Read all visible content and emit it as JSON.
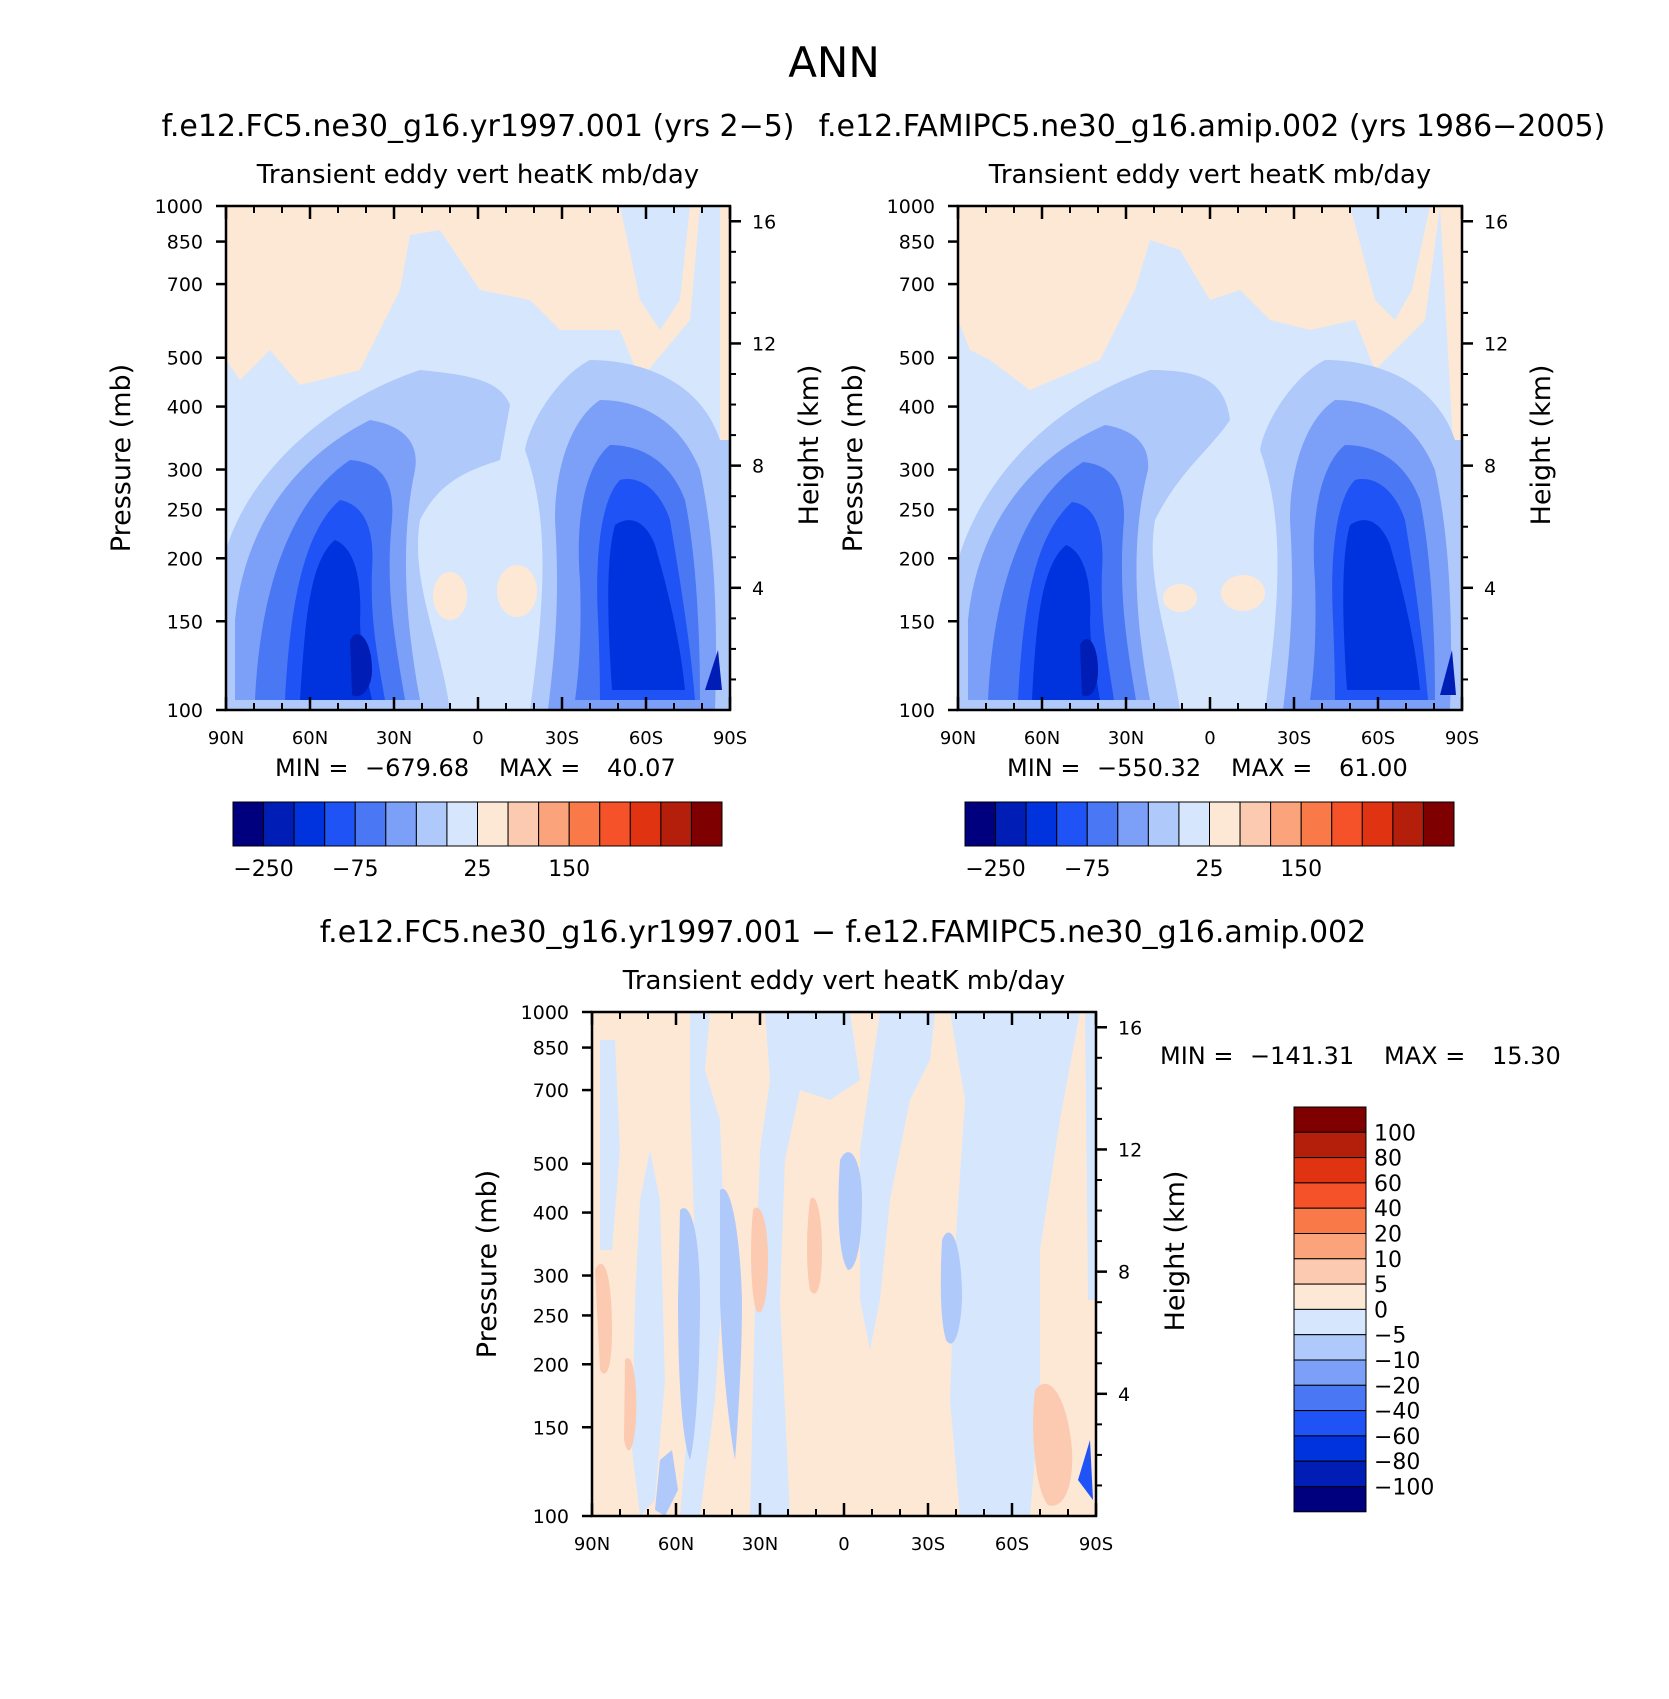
{
  "figure": {
    "title": "ANN"
  },
  "chart_data": [
    {
      "id": "p1",
      "type": "heatmap",
      "case_title": "f.e12.FC5.ne30_g16.yr1997.001 (yrs 2-5)",
      "title": "Transient eddy vert heatK mb/day",
      "ylabel": "Pressure (mb)",
      "ylabel_right": "Height (km)",
      "x_ticks": [
        "90N",
        "60N",
        "30N",
        "0",
        "30S",
        "60S",
        "90S"
      ],
      "y_ticks": [
        "100",
        "150",
        "200",
        "250",
        "300",
        "400",
        "500",
        "700",
        "850",
        "1000"
      ],
      "y2_ticks": [
        "16",
        "12",
        "8",
        "4"
      ],
      "xlim": [
        90,
        -90
      ],
      "ylim": [
        1000,
        100
      ],
      "y2lim": [
        0,
        16.5
      ],
      "stats": {
        "min_label": "MIN =",
        "min": "-679.68",
        "max_label": "MAX =",
        "max": "40.07"
      },
      "colorbar": {
        "orientation": "horizontal",
        "tick_labels": [
          "-250",
          "-75",
          "25",
          "150"
        ],
        "colors": [
          "#00007f",
          "#001eb5",
          "#0033dd",
          "#1f53f5",
          "#4a78f4",
          "#7ca0f8",
          "#b0c9fb",
          "#d6e7fd",
          "#fde8d6",
          "#fccab0",
          "#fba37b",
          "#f97a48",
          "#f65229",
          "#df3311",
          "#b41f0b",
          "#7f0000"
        ]
      }
    },
    {
      "id": "p2",
      "type": "heatmap",
      "case_title": "f.e12.FAMIPC5.ne30_g16.amip.002 (yrs 1986-2005)",
      "title": "Transient eddy vert heatK mb/day",
      "ylabel": "Pressure (mb)",
      "ylabel_right": "Height (km)",
      "x_ticks": [
        "90N",
        "60N",
        "30N",
        "0",
        "30S",
        "60S",
        "90S"
      ],
      "y_ticks": [
        "100",
        "150",
        "200",
        "250",
        "300",
        "400",
        "500",
        "700",
        "850",
        "1000"
      ],
      "y2_ticks": [
        "16",
        "12",
        "8",
        "4"
      ],
      "xlim": [
        90,
        -90
      ],
      "ylim": [
        1000,
        100
      ],
      "y2lim": [
        0,
        16.5
      ],
      "stats": {
        "min_label": "MIN =",
        "min": "-550.32",
        "max_label": "MAX =",
        "max": "61.00"
      },
      "colorbar": {
        "orientation": "horizontal",
        "tick_labels": [
          "-250",
          "-75",
          "25",
          "150"
        ],
        "colors": [
          "#00007f",
          "#001eb5",
          "#0033dd",
          "#1f53f5",
          "#4a78f4",
          "#7ca0f8",
          "#b0c9fb",
          "#d6e7fd",
          "#fde8d6",
          "#fccab0",
          "#fba37b",
          "#f97a48",
          "#f65229",
          "#df3311",
          "#b41f0b",
          "#7f0000"
        ]
      }
    },
    {
      "id": "p3",
      "type": "heatmap",
      "case_title": "f.e12.FC5.ne30_g16.yr1997.001 - f.e12.FAMIPC5.ne30_g16.amip.002",
      "title": "Transient eddy vert heatK mb/day",
      "ylabel": "Pressure (mb)",
      "ylabel_right": "Height (km)",
      "x_ticks": [
        "90N",
        "60N",
        "30N",
        "0",
        "30S",
        "60S",
        "90S"
      ],
      "y_ticks": [
        "100",
        "150",
        "200",
        "250",
        "300",
        "400",
        "500",
        "700",
        "850",
        "1000"
      ],
      "y2_ticks": [
        "16",
        "12",
        "8",
        "4"
      ],
      "xlim": [
        90,
        -90
      ],
      "ylim": [
        1000,
        100
      ],
      "y2lim": [
        0,
        16.5
      ],
      "stats": {
        "min_label": "MIN =",
        "min": "-141.31",
        "max_label": "MAX =",
        "max": "15.30"
      },
      "colorbar": {
        "orientation": "vertical",
        "tick_labels": [
          "100",
          "80",
          "60",
          "40",
          "20",
          "10",
          "5",
          "0",
          "-5",
          "-10",
          "-20",
          "-40",
          "-60",
          "-80",
          "-100"
        ],
        "colors": [
          "#7f0000",
          "#b41f0b",
          "#df3311",
          "#f65229",
          "#f97a48",
          "#fba37b",
          "#fccab0",
          "#fde8d6",
          "#d6e7fd",
          "#b0c9fb",
          "#7ca0f8",
          "#4a78f4",
          "#1f53f5",
          "#0033dd",
          "#001eb5",
          "#00007f"
        ]
      }
    }
  ]
}
